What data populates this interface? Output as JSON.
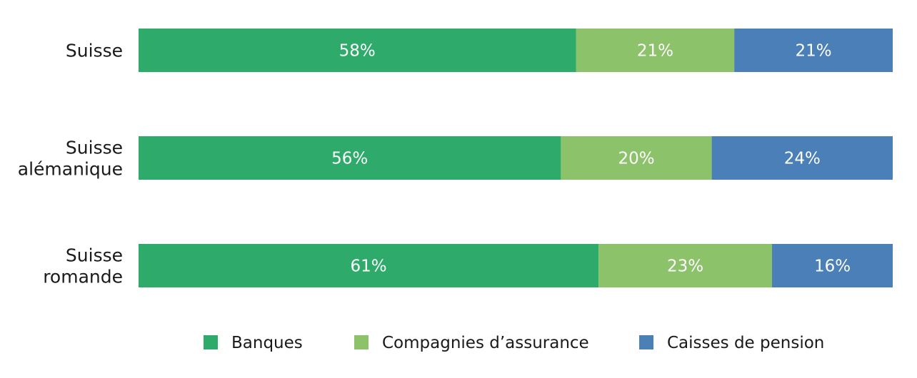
{
  "chart_data": {
    "type": "bar",
    "orientation": "horizontal",
    "stacked": true,
    "percent": true,
    "categories": [
      [
        "Suisse"
      ],
      [
        "Suisse",
        "alémanique"
      ],
      [
        "Suisse",
        "romande"
      ]
    ],
    "series": [
      {
        "name": "Banques",
        "color": "#2eab6b",
        "values": [
          58,
          56,
          61
        ]
      },
      {
        "name": "Compagnies d’assurance",
        "color": "#8cc26a",
        "values": [
          21,
          20,
          23
        ]
      },
      {
        "name": "Caisses de pension",
        "color": "#4a7fb8",
        "values": [
          21,
          24,
          16
        ]
      }
    ],
    "value_suffix": "%",
    "xlim": [
      0,
      100
    ],
    "grid": false,
    "legend_position": "bottom"
  }
}
